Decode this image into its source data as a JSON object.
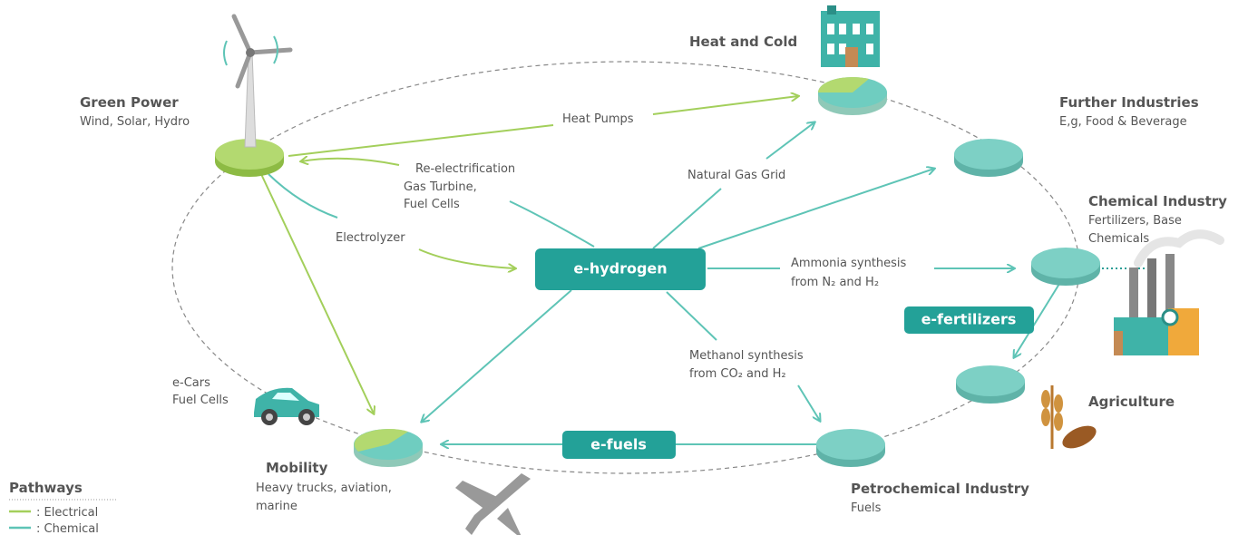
{
  "nodes": [
    {
      "title": "Green Power",
      "lines": [
        "Wind, Solar, Hydro"
      ]
    },
    {
      "title": "Heat and Cold"
    },
    {
      "title": "Further Industries",
      "lines": [
        "E,g, Food & Beverage"
      ]
    },
    {
      "title": "Chemical Industry",
      "lines": [
        "Fertilizers, Base",
        "Chemicals"
      ]
    },
    {
      "title": "Agriculture"
    },
    {
      "title": "Petrochemical Industry",
      "lines": [
        "Fuels"
      ]
    },
    {
      "title": "Mobility",
      "lines": [
        "Heavy trucks, aviation,",
        "marine"
      ]
    }
  ],
  "hubs": [
    "e-hydrogen",
    "e-fertilizers",
    "e-fuels"
  ],
  "edge_labels": [
    [
      "Heat Pumps"
    ],
    [
      "Re-electrification",
      "Gas Turbine,",
      "Fuel Cells"
    ],
    [
      "Natural Gas Grid"
    ],
    [
      "Electrolyzer"
    ],
    [
      "Ammonia synthesis",
      "from N₂ and H₂"
    ],
    [
      "Methanol synthesis",
      "from CO₂ and H₂"
    ]
  ],
  "side_label": [
    "e-Cars",
    "Fuel Cells"
  ],
  "legend": {
    "title": "Pathways",
    "items": [
      ": Electrical",
      ": Chemical"
    ]
  }
}
